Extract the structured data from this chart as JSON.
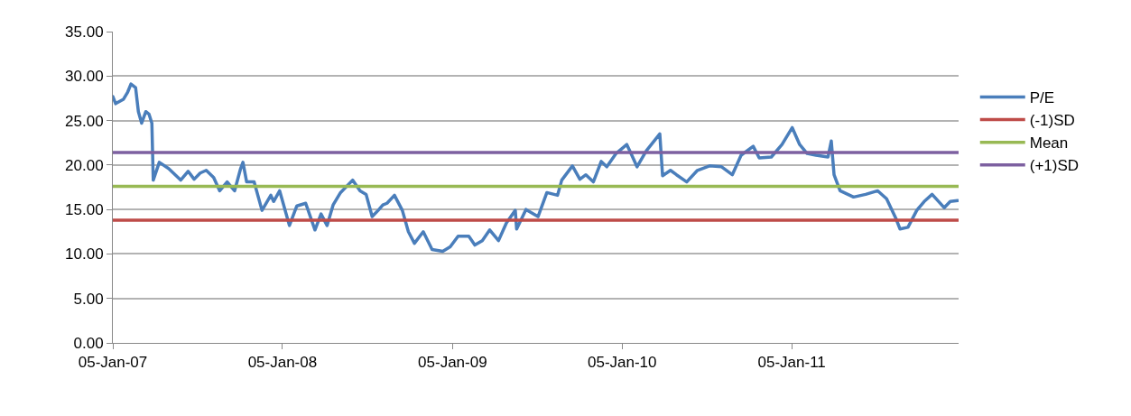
{
  "chart_data": {
    "type": "line",
    "xlim": [
      "2007-01-05",
      "2011-12-30"
    ],
    "xticks": [
      {
        "value": "2007-01-05",
        "label": "05-Jan-07"
      },
      {
        "value": "2008-01-05",
        "label": "05-Jan-08"
      },
      {
        "value": "2009-01-05",
        "label": "05-Jan-09"
      },
      {
        "value": "2010-01-05",
        "label": "05-Jan-10"
      },
      {
        "value": "2011-01-05",
        "label": "05-Jan-11"
      }
    ],
    "ylim": [
      0,
      35
    ],
    "yticks": [
      {
        "value": 0,
        "label": "0.00"
      },
      {
        "value": 5,
        "label": "5.00"
      },
      {
        "value": 10,
        "label": "10.00"
      },
      {
        "value": 15,
        "label": "15.00"
      },
      {
        "value": 20,
        "label": "20.00"
      },
      {
        "value": 25,
        "label": "25.00"
      },
      {
        "value": 30,
        "label": "30.00"
      },
      {
        "value": 35,
        "label": "35.00"
      }
    ],
    "grid": "y",
    "legend": "right",
    "marker": "none",
    "line_style": "solid",
    "series": [
      {
        "name": "P/E",
        "color": "#4a7ebb",
        "x": [
          "2007-01-05",
          "2007-01-11",
          "2007-01-28",
          "2007-02-06",
          "2007-02-13",
          "2007-02-23",
          "2007-03-01",
          "2007-03-08",
          "2007-03-17",
          "2007-03-24",
          "2007-03-30",
          "2007-04-02",
          "2007-04-15",
          "2007-05-05",
          "2007-05-31",
          "2007-06-16",
          "2007-06-29",
          "2007-07-12",
          "2007-07-25",
          "2007-08-10",
          "2007-08-23",
          "2007-09-08",
          "2007-09-24",
          "2007-10-07",
          "2007-10-12",
          "2007-10-20",
          "2007-11-05",
          "2007-11-22",
          "2007-12-11",
          "2007-12-17",
          "2007-12-30",
          "2008-01-20",
          "2008-02-05",
          "2008-02-24",
          "2008-03-15",
          "2008-03-28",
          "2008-04-10",
          "2008-04-23",
          "2008-05-09",
          "2008-06-04",
          "2008-06-20",
          "2008-07-03",
          "2008-07-16",
          "2008-07-29",
          "2008-08-08",
          "2008-08-17",
          "2008-09-02",
          "2008-09-19",
          "2008-10-02",
          "2008-10-15",
          "2008-11-03",
          "2008-11-22",
          "2008-12-15",
          "2008-12-31",
          "2009-01-17",
          "2009-02-09",
          "2009-02-22",
          "2009-03-10",
          "2009-03-26",
          "2009-04-14",
          "2009-05-01",
          "2009-05-20",
          "2009-05-23",
          "2009-06-12",
          "2009-07-08",
          "2009-07-27",
          "2009-08-19",
          "2009-08-28",
          "2009-09-20",
          "2009-10-06",
          "2009-10-19",
          "2009-11-04",
          "2009-11-21",
          "2009-12-03",
          "2009-12-23",
          "2010-01-15",
          "2010-01-24",
          "2010-02-06",
          "2010-02-26",
          "2010-03-27",
          "2010-04-02",
          "2010-04-19",
          "2010-05-02",
          "2010-05-24",
          "2010-06-16",
          "2010-07-12",
          "2010-08-07",
          "2010-08-30",
          "2010-09-18",
          "2010-10-14",
          "2010-10-27",
          "2010-11-22",
          "2010-12-15",
          "2011-01-06",
          "2011-01-22",
          "2011-02-07",
          "2011-02-26",
          "2011-03-24",
          "2011-03-31",
          "2011-04-06",
          "2011-04-19",
          "2011-05-18",
          "2011-06-13",
          "2011-07-09",
          "2011-07-28",
          "2011-08-17",
          "2011-08-26",
          "2011-09-12",
          "2011-10-01",
          "2011-10-17",
          "2011-11-03",
          "2011-11-29",
          "2011-12-12",
          "2011-12-28"
        ],
        "values": [
          27.7,
          26.9,
          27.4,
          28.2,
          29.1,
          28.7,
          26.0,
          24.7,
          26.0,
          25.7,
          24.7,
          18.3,
          20.3,
          19.6,
          18.3,
          19.3,
          18.4,
          19.1,
          19.4,
          18.6,
          17.1,
          18.1,
          17.1,
          19.6,
          20.3,
          18.1,
          18.1,
          14.9,
          16.6,
          15.9,
          17.1,
          13.2,
          15.4,
          15.7,
          12.7,
          14.5,
          13.2,
          15.5,
          16.9,
          18.3,
          17.1,
          16.7,
          14.2,
          14.9,
          15.5,
          15.7,
          16.6,
          14.9,
          12.5,
          11.2,
          12.5,
          10.5,
          10.3,
          10.8,
          12.0,
          12.0,
          11.0,
          11.5,
          12.7,
          11.5,
          13.5,
          14.9,
          12.8,
          15.0,
          14.2,
          16.9,
          16.6,
          18.3,
          19.9,
          18.4,
          18.9,
          18.1,
          20.4,
          19.8,
          21.3,
          22.3,
          21.3,
          19.8,
          21.6,
          23.5,
          18.8,
          19.4,
          18.9,
          18.1,
          19.4,
          19.9,
          19.8,
          18.9,
          21.1,
          22.1,
          20.8,
          20.9,
          22.3,
          24.2,
          22.3,
          21.3,
          21.1,
          20.9,
          22.7,
          18.9,
          17.1,
          16.4,
          16.7,
          17.1,
          16.2,
          14.0,
          12.8,
          13.0,
          14.9,
          15.9,
          16.7,
          15.2,
          15.9,
          16.0
        ]
      },
      {
        "name": "(-1)SD",
        "color": "#be4b48",
        "x": [
          "2007-01-05",
          "2011-12-30"
        ],
        "values": [
          13.8,
          13.8
        ]
      },
      {
        "name": "Mean",
        "color": "#98b954",
        "x": [
          "2007-01-05",
          "2011-12-30"
        ],
        "values": [
          17.6,
          17.6
        ]
      },
      {
        "name": "(+1)SD",
        "color": "#7d60a0",
        "x": [
          "2007-01-05",
          "2011-12-30"
        ],
        "values": [
          21.4,
          21.4
        ]
      }
    ]
  }
}
